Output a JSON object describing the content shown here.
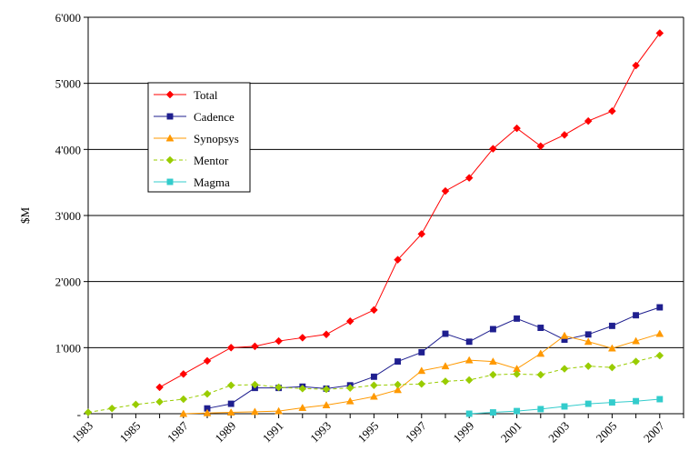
{
  "chart_data": {
    "type": "line",
    "ylabel": "$M",
    "xlabel": "",
    "title": "",
    "ylim": [
      0,
      6000
    ],
    "xlim": [
      1983,
      2008
    ],
    "grid": true,
    "legend_placement": "upper-left",
    "y_ticks": [
      {
        "value": 0,
        "label": "-"
      },
      {
        "value": 1000,
        "label": "1'000"
      },
      {
        "value": 2000,
        "label": "2'000"
      },
      {
        "value": 3000,
        "label": "3'000"
      },
      {
        "value": 4000,
        "label": "4'000"
      },
      {
        "value": 5000,
        "label": "5'000"
      },
      {
        "value": 6000,
        "label": "6'000"
      }
    ],
    "x_ticks": [
      1983,
      1985,
      1987,
      1989,
      1991,
      1993,
      1995,
      1997,
      1999,
      2001,
      2003,
      2005,
      2007
    ],
    "series": [
      {
        "name": "Total",
        "color": "#ff0000",
        "marker": "diamond",
        "dash": "",
        "points": [
          [
            1986,
            400
          ],
          [
            1987,
            600
          ],
          [
            1988,
            800
          ],
          [
            1989,
            1000
          ],
          [
            1990,
            1020
          ],
          [
            1991,
            1100
          ],
          [
            1992,
            1150
          ],
          [
            1993,
            1200
          ],
          [
            1994,
            1400
          ],
          [
            1995,
            1570
          ],
          [
            1996,
            2330
          ],
          [
            1997,
            2720
          ],
          [
            1998,
            3370
          ],
          [
            1999,
            3570
          ],
          [
            2000,
            4010
          ],
          [
            2001,
            4320
          ],
          [
            2002,
            4050
          ],
          [
            2003,
            4220
          ],
          [
            2004,
            4430
          ],
          [
            2005,
            4580
          ],
          [
            2006,
            5270
          ],
          [
            2007,
            5760
          ]
        ]
      },
      {
        "name": "Cadence",
        "color": "#1f1f8f",
        "marker": "square",
        "dash": "",
        "points": [
          [
            1988,
            80
          ],
          [
            1989,
            150
          ],
          [
            1990,
            390
          ],
          [
            1991,
            390
          ],
          [
            1992,
            410
          ],
          [
            1993,
            380
          ],
          [
            1994,
            430
          ],
          [
            1995,
            560
          ],
          [
            1996,
            790
          ],
          [
            1997,
            930
          ],
          [
            1998,
            1210
          ],
          [
            1999,
            1090
          ],
          [
            2000,
            1280
          ],
          [
            2001,
            1440
          ],
          [
            2002,
            1300
          ],
          [
            2003,
            1120
          ],
          [
            2004,
            1200
          ],
          [
            2005,
            1330
          ],
          [
            2006,
            1490
          ],
          [
            2007,
            1610
          ]
        ]
      },
      {
        "name": "Synopsys",
        "color": "#ff9900",
        "marker": "triangle",
        "dash": "",
        "points": [
          [
            1987,
            0
          ],
          [
            1988,
            10
          ],
          [
            1989,
            20
          ],
          [
            1990,
            30
          ],
          [
            1991,
            40
          ],
          [
            1992,
            90
          ],
          [
            1993,
            130
          ],
          [
            1994,
            190
          ],
          [
            1995,
            260
          ],
          [
            1996,
            360
          ],
          [
            1997,
            650
          ],
          [
            1998,
            720
          ],
          [
            1999,
            810
          ],
          [
            2000,
            790
          ],
          [
            2001,
            680
          ],
          [
            2002,
            910
          ],
          [
            2003,
            1180
          ],
          [
            2004,
            1090
          ],
          [
            2005,
            990
          ],
          [
            2006,
            1100
          ],
          [
            2007,
            1210
          ]
        ]
      },
      {
        "name": "Mentor",
        "color": "#99cc00",
        "marker": "diamond",
        "dash": "4,3",
        "points": [
          [
            1983,
            20
          ],
          [
            1984,
            80
          ],
          [
            1985,
            140
          ],
          [
            1986,
            180
          ],
          [
            1987,
            220
          ],
          [
            1988,
            300
          ],
          [
            1989,
            430
          ],
          [
            1990,
            440
          ],
          [
            1991,
            400
          ],
          [
            1992,
            380
          ],
          [
            1993,
            370
          ],
          [
            1994,
            390
          ],
          [
            1995,
            430
          ],
          [
            1996,
            440
          ],
          [
            1997,
            450
          ],
          [
            1998,
            490
          ],
          [
            1999,
            510
          ],
          [
            2000,
            590
          ],
          [
            2001,
            600
          ],
          [
            2002,
            590
          ],
          [
            2003,
            680
          ],
          [
            2004,
            720
          ],
          [
            2005,
            700
          ],
          [
            2006,
            790
          ],
          [
            2007,
            880
          ]
        ]
      },
      {
        "name": "Magma",
        "color": "#33cccc",
        "marker": "square",
        "dash": "",
        "points": [
          [
            1999,
            0
          ],
          [
            2000,
            20
          ],
          [
            2001,
            40
          ],
          [
            2002,
            70
          ],
          [
            2003,
            110
          ],
          [
            2004,
            150
          ],
          [
            2005,
            170
          ],
          [
            2006,
            190
          ],
          [
            2007,
            220
          ]
        ]
      }
    ]
  }
}
